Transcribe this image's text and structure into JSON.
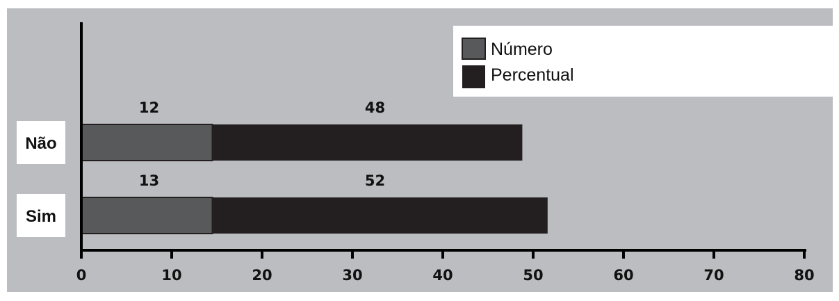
{
  "chart_data": {
    "type": "bar",
    "orientation": "horizontal",
    "categories": [
      "Não",
      "Sim"
    ],
    "series": [
      {
        "name": "Número",
        "values": [
          12,
          13
        ],
        "color": "#58595b"
      },
      {
        "name": "Percentual",
        "values": [
          48,
          52
        ],
        "color": "#231f20"
      }
    ],
    "bar_lengths": {
      "Número": [
        14.5,
        14.5
      ],
      "Percentual": [
        48.8,
        51.6
      ]
    },
    "xlim": [
      0,
      80
    ],
    "xticks": [
      0,
      10,
      20,
      30,
      40,
      50,
      60,
      70,
      80
    ],
    "grid": false,
    "legend_position": "top-right",
    "title": "",
    "xlabel": "",
    "ylabel": ""
  },
  "colors": {
    "background": "#bcbdc0",
    "label_box": "#ffffff",
    "axis": "#000000"
  }
}
